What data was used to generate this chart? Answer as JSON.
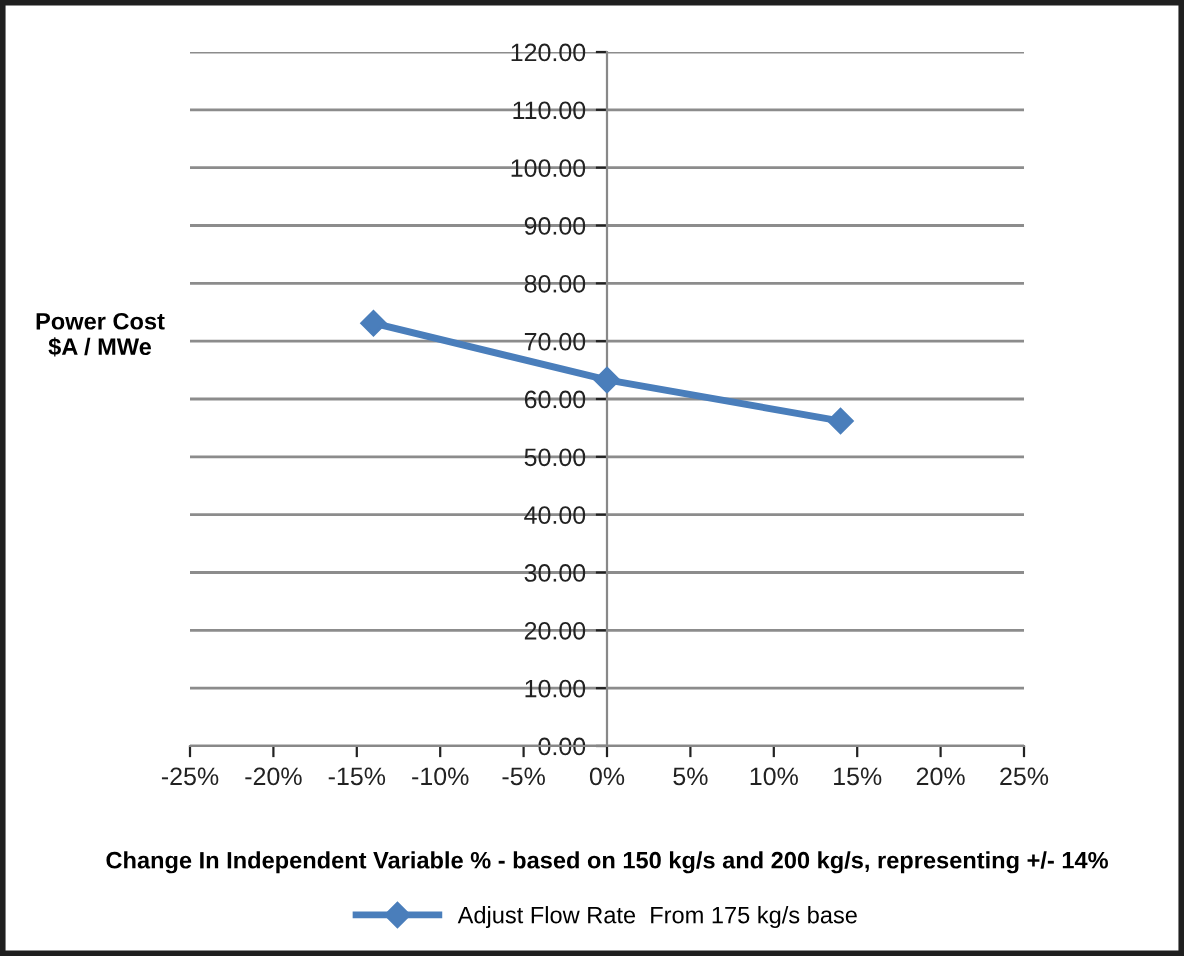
{
  "chart_data": {
    "type": "line",
    "xlabel": "Change In Independent Variable % - based on 150 kg/s and 200 kg/s, representing +/- 14%",
    "ylabel": "Power Cost\n$A / MWe",
    "x": [
      -14,
      0,
      14
    ],
    "series": [
      {
        "name": "Adjust Flow Rate  From 175 kg/s base",
        "color": "#4a7ebb",
        "values": [
          73.1,
          63.3,
          56.2
        ]
      }
    ],
    "xlim": [
      -25,
      25
    ],
    "ylim": [
      0,
      120
    ],
    "xticks": [
      {
        "value": -25,
        "label": "-25%"
      },
      {
        "value": -20,
        "label": "-20%"
      },
      {
        "value": -15,
        "label": "-15%"
      },
      {
        "value": -10,
        "label": "-10%"
      },
      {
        "value": -5,
        "label": "-5%"
      },
      {
        "value": 0,
        "label": "0%"
      },
      {
        "value": 5,
        "label": "5%"
      },
      {
        "value": 10,
        "label": "10%"
      },
      {
        "value": 15,
        "label": "15%"
      },
      {
        "value": 20,
        "label": "20%"
      },
      {
        "value": 25,
        "label": "25%"
      }
    ],
    "yticks": [
      {
        "value": 0,
        "label": "0.00"
      },
      {
        "value": 10,
        "label": "10.00"
      },
      {
        "value": 20,
        "label": "20.00"
      },
      {
        "value": 30,
        "label": "30.00"
      },
      {
        "value": 40,
        "label": "40.00"
      },
      {
        "value": 50,
        "label": "50.00"
      },
      {
        "value": 60,
        "label": "60.00"
      },
      {
        "value": 70,
        "label": "70.00"
      },
      {
        "value": 80,
        "label": "80.00"
      },
      {
        "value": 90,
        "label": "90.00"
      },
      {
        "value": 100,
        "label": "100.00"
      },
      {
        "value": 110,
        "label": "110.00"
      },
      {
        "value": 120,
        "label": "120.00"
      }
    ],
    "grid": "y",
    "legend": "bottom",
    "marker": "diamond",
    "line_style": "solid"
  }
}
